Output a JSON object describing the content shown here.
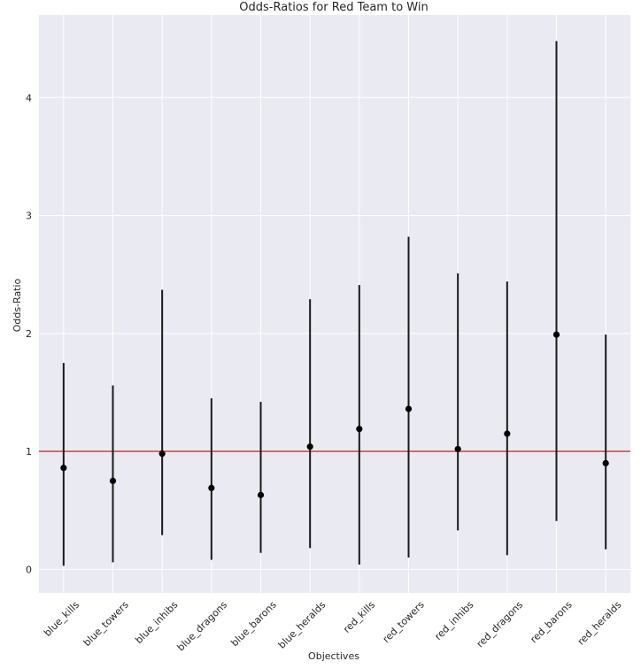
{
  "chart_data": {
    "type": "scatter",
    "title": "Odds-Ratios for Red Team to Win",
    "xlabel": "Objectives",
    "ylabel": "Odds-Ratio",
    "categories": [
      "blue_kills",
      "blue_towers",
      "blue_inhibs",
      "blue_dragons",
      "blue_barons",
      "blue_heralds",
      "red_kills",
      "red_towers",
      "red_inhibs",
      "red_dragons",
      "red_barons",
      "red_heralds"
    ],
    "series": [
      {
        "values": [
          0.86,
          0.75,
          0.98,
          0.69,
          0.63,
          1.04,
          1.19,
          1.36,
          1.02,
          1.15,
          1.99,
          0.9
        ],
        "lower": [
          0.03,
          0.06,
          0.29,
          0.08,
          0.14,
          0.18,
          0.04,
          0.1,
          0.33,
          0.12,
          0.41,
          0.17
        ],
        "upper": [
          1.75,
          1.56,
          2.37,
          1.45,
          1.42,
          2.29,
          2.41,
          2.82,
          2.51,
          2.44,
          4.48,
          1.99
        ]
      }
    ],
    "reference_line": {
      "y": 1,
      "color": "#e8453c"
    },
    "yticks": [
      0,
      1,
      2,
      3,
      4
    ],
    "ylim": [
      -0.2,
      4.7
    ],
    "grid": true,
    "background": "#eaeaf2",
    "marker_color": "#000000",
    "errorbar_color": "#1a1a1a"
  }
}
